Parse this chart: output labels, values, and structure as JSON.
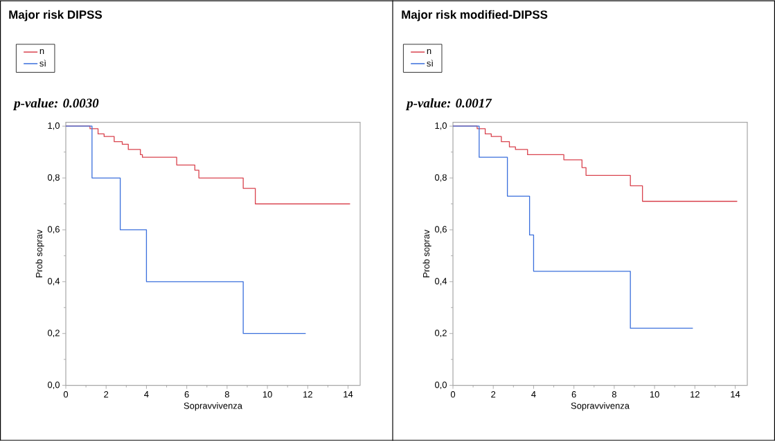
{
  "chart_data": [
    {
      "type": "step",
      "title": "Major risk DIPSS",
      "xlabel": "Sopravvivenza",
      "ylabel": "Prob soprav",
      "annotations": [
        "p-value: 0.0030"
      ],
      "xlim": [
        0,
        14.6
      ],
      "ylim": [
        0,
        1.015
      ],
      "xticks": [
        0,
        2,
        4,
        6,
        8,
        10,
        12,
        14
      ],
      "yticks": [
        {
          "value": 0,
          "label": "0,0"
        },
        {
          "value": 0.2,
          "label": "0,2"
        },
        {
          "value": 0.4,
          "label": "0,4"
        },
        {
          "value": 0.6,
          "label": "0,6"
        },
        {
          "value": 0.8,
          "label": "0,8"
        },
        {
          "value": 1,
          "label": "1,0"
        }
      ],
      "legend": "top left",
      "series": [
        {
          "name": "n",
          "color": "#d9434e",
          "x": [
            0,
            1.2,
            1.6,
            1.9,
            2.4,
            2.8,
            3.1,
            3.7,
            3.8,
            5.5,
            6.4,
            6.6,
            8.8,
            9.4,
            14.1
          ],
          "values": [
            1,
            0.99,
            0.97,
            0.96,
            0.94,
            0.93,
            0.91,
            0.89,
            0.88,
            0.85,
            0.83,
            0.8,
            0.76,
            0.7,
            0.7
          ]
        },
        {
          "name": "sì",
          "color": "#3a6fdc",
          "x": [
            0,
            1.3,
            2.7,
            4.0,
            8.8,
            11.9
          ],
          "values": [
            1,
            0.8,
            0.6,
            0.4,
            0.2,
            0.2
          ]
        }
      ]
    },
    {
      "type": "step",
      "title": "Major risk modified-DIPSS",
      "xlabel": "Sopravvivenza",
      "ylabel": "Prob soprav",
      "annotations": [
        "p-value: 0.0017"
      ],
      "xlim": [
        0,
        14.6
      ],
      "ylim": [
        0,
        1.015
      ],
      "xticks": [
        0,
        2,
        4,
        6,
        8,
        10,
        12,
        14
      ],
      "yticks": [
        {
          "value": 0,
          "label": "0,0"
        },
        {
          "value": 0.2,
          "label": "0,2"
        },
        {
          "value": 0.4,
          "label": "0,4"
        },
        {
          "value": 0.6,
          "label": "0,6"
        },
        {
          "value": 0.8,
          "label": "0,8"
        },
        {
          "value": 1,
          "label": "1,0"
        }
      ],
      "legend": "top left",
      "series": [
        {
          "name": "n",
          "color": "#d9434e",
          "x": [
            0,
            1.2,
            1.6,
            1.9,
            2.4,
            2.8,
            3.1,
            3.7,
            5.5,
            6.4,
            6.6,
            8.8,
            9.4,
            14.1
          ],
          "values": [
            1,
            0.99,
            0.97,
            0.96,
            0.94,
            0.92,
            0.91,
            0.89,
            0.87,
            0.84,
            0.81,
            0.77,
            0.71,
            0.71
          ]
        },
        {
          "name": "sì",
          "color": "#3a6fdc",
          "x": [
            0,
            1.3,
            2.7,
            3.8,
            4.0,
            8.8,
            11.9
          ],
          "values": [
            1,
            0.88,
            0.73,
            0.58,
            0.44,
            0.22,
            0.22
          ]
        }
      ]
    }
  ]
}
